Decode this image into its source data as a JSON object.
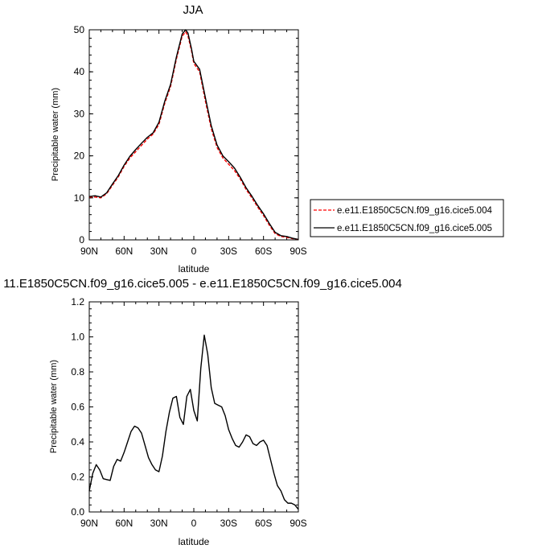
{
  "chart_data": [
    {
      "type": "line",
      "title": "JJA",
      "xlabel": "latitude",
      "ylabel": "Precipitable water (mm)",
      "xlim": [
        -90,
        90
      ],
      "ylim": [
        0,
        50
      ],
      "x_ticks": [
        -90,
        -60,
        -30,
        0,
        30,
        60,
        90
      ],
      "x_tick_labels": [
        "90N",
        "60N",
        "30N",
        "0",
        "30S",
        "60S",
        "90S"
      ],
      "y_ticks": [
        0,
        10,
        20,
        30,
        40,
        50
      ],
      "y_tick_labels": [
        "0",
        "10",
        "20",
        "30",
        "40",
        "50"
      ],
      "legend_position": "right",
      "grid": false,
      "series": [
        {
          "name": "e.e11.E1850C5CN.f09_g16.cice5.004",
          "color": "#ff0000",
          "dash": "dashed",
          "x": [
            -90,
            -85,
            -80,
            -75,
            -70,
            -65,
            -60,
            -55,
            -50,
            -45,
            -40,
            -35,
            -30,
            -25,
            -20,
            -15,
            -10,
            -7,
            -5,
            -2,
            0,
            5,
            10,
            15,
            20,
            25,
            30,
            35,
            40,
            45,
            50,
            55,
            60,
            65,
            70,
            75,
            80,
            85,
            90
          ],
          "values": [
            10.2,
            10.2,
            10.0,
            11.0,
            13.0,
            15.0,
            17.5,
            19.5,
            21.0,
            22.5,
            24.0,
            25.2,
            27.5,
            32.5,
            36.5,
            43.0,
            48.5,
            49.5,
            48.5,
            45.0,
            42.0,
            40.0,
            33.0,
            26.5,
            22.0,
            19.5,
            18.0,
            16.5,
            14.5,
            12.0,
            10.0,
            7.8,
            5.8,
            3.5,
            1.5,
            0.8,
            0.6,
            0.3,
            0.1
          ]
        },
        {
          "name": "e.e11.E1850C5CN.f09_g16.cice5.005",
          "color": "#000000",
          "dash": "solid",
          "x": [
            -90,
            -85,
            -80,
            -75,
            -70,
            -65,
            -60,
            -55,
            -50,
            -45,
            -40,
            -35,
            -30,
            -25,
            -20,
            -15,
            -10,
            -7,
            -5,
            -2,
            0,
            5,
            10,
            15,
            20,
            25,
            30,
            35,
            40,
            45,
            50,
            55,
            60,
            65,
            70,
            75,
            80,
            85,
            90
          ],
          "values": [
            10.3,
            10.5,
            10.2,
            11.2,
            13.3,
            15.3,
            17.8,
            19.9,
            21.5,
            23.0,
            24.4,
            25.5,
            28.0,
            33.0,
            37.0,
            43.5,
            49.0,
            50.0,
            49.2,
            45.5,
            42.5,
            40.6,
            33.8,
            27.2,
            22.6,
            20.0,
            18.6,
            17.1,
            14.9,
            12.4,
            10.4,
            8.2,
            6.2,
            3.9,
            1.8,
            1.0,
            0.8,
            0.4,
            0.1
          ]
        }
      ]
    },
    {
      "type": "line",
      "title": "11.E1850C5CN.f09_g16.cice5.005 - e.e11.E1850C5CN.f09_g16.cice5.004",
      "xlabel": "latitude",
      "ylabel": "Precipitable water (mm)",
      "xlim": [
        -90,
        90
      ],
      "ylim": [
        0,
        1.2
      ],
      "x_ticks": [
        -90,
        -60,
        -30,
        0,
        30,
        60,
        90
      ],
      "x_tick_labels": [
        "90N",
        "60N",
        "30N",
        "0",
        "30S",
        "60S",
        "90S"
      ],
      "y_ticks": [
        0,
        0.2,
        0.4,
        0.6,
        0.8,
        1.0,
        1.2
      ],
      "y_tick_labels": [
        "0.0",
        "0.2",
        "0.4",
        "0.6",
        "0.8",
        "1.0",
        "1.2"
      ],
      "grid": false,
      "series": [
        {
          "color": "#000000",
          "dash": "solid",
          "x": [
            -90,
            -87,
            -84,
            -81,
            -78,
            -75,
            -72,
            -69,
            -66,
            -63,
            -60,
            -57,
            -54,
            -51,
            -48,
            -45,
            -42,
            -39,
            -36,
            -33,
            -30,
            -27,
            -24,
            -21,
            -18,
            -15,
            -12,
            -9,
            -6,
            -3,
            0,
            3,
            6,
            9,
            12,
            15,
            18,
            21,
            24,
            27,
            30,
            33,
            36,
            39,
            42,
            45,
            48,
            51,
            54,
            57,
            60,
            63,
            66,
            69,
            72,
            75,
            78,
            81,
            84,
            87,
            90
          ],
          "values": [
            0.12,
            0.22,
            0.27,
            0.24,
            0.19,
            0.185,
            0.18,
            0.26,
            0.3,
            0.29,
            0.34,
            0.4,
            0.46,
            0.49,
            0.48,
            0.45,
            0.38,
            0.31,
            0.27,
            0.24,
            0.23,
            0.32,
            0.46,
            0.57,
            0.65,
            0.66,
            0.54,
            0.5,
            0.66,
            0.7,
            0.58,
            0.52,
            0.82,
            1.01,
            0.9,
            0.71,
            0.62,
            0.61,
            0.6,
            0.55,
            0.47,
            0.42,
            0.38,
            0.37,
            0.4,
            0.44,
            0.43,
            0.39,
            0.38,
            0.4,
            0.41,
            0.38,
            0.3,
            0.22,
            0.15,
            0.12,
            0.07,
            0.05,
            0.05,
            0.04,
            0.015
          ]
        }
      ]
    }
  ]
}
